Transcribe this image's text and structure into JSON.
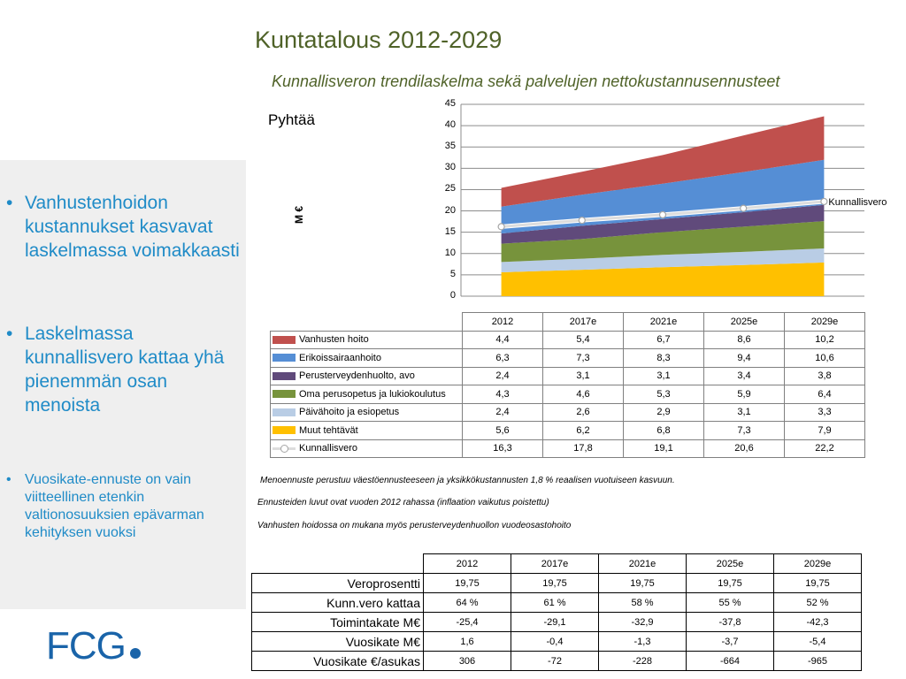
{
  "title": "Kuntatalous 2012-2029",
  "subtitle": "Kunnallisveron trendilaskelma sekä palvelujen nettokustannusennusteet",
  "sidebar": {
    "bullets": [
      "Vanhustenhoidon kustannukset kasvavat laskelmassa voimakkaasti",
      "Laskelmassa kunnallisvero kattaa yhä pienemmän osan menoista",
      "Vuosikate-ennuste on vain viitteellinen etenkin valtionosuuksien epävarman kehityksen vuoksi"
    ],
    "bullet_symbol": "•"
  },
  "logo": "FCG",
  "chart_data": {
    "type": "area",
    "chart_label": "Pyhtää",
    "ylabel": "M €",
    "ylim": [
      0,
      45
    ],
    "yticks": [
      "0",
      "5",
      "10",
      "15",
      "20",
      "25",
      "30",
      "35",
      "40",
      "45"
    ],
    "categories": [
      "2012",
      "2017e",
      "2021e",
      "2025e",
      "2029e"
    ],
    "series": [
      {
        "name": "Vanhusten hoito",
        "values": [
          4.4,
          5.4,
          6.7,
          8.6,
          10.2
        ],
        "labels": [
          "4,4",
          "5,4",
          "6,7",
          "8,6",
          "10,2"
        ],
        "color": "#C0504D"
      },
      {
        "name": "Erikoissairaanhoito",
        "values": [
          6.3,
          7.3,
          8.3,
          9.4,
          10.6
        ],
        "labels": [
          "6,3",
          "7,3",
          "8,3",
          "9,4",
          "10,6"
        ],
        "color": "#558ED5"
      },
      {
        "name": "Perusterveydenhuolto, avo",
        "values": [
          2.4,
          3.1,
          3.1,
          3.4,
          3.8
        ],
        "labels": [
          "2,4",
          "3,1",
          "3,1",
          "3,4",
          "3,8"
        ],
        "color": "#604A7B"
      },
      {
        "name": "Oma perusopetus ja lukiokoulutus",
        "values": [
          4.3,
          4.6,
          5.3,
          5.9,
          6.4
        ],
        "labels": [
          "4,3",
          "4,6",
          "5,3",
          "5,9",
          "6,4"
        ],
        "color": "#77933C"
      },
      {
        "name": "Päivähoito ja esiopetus",
        "values": [
          2.4,
          2.6,
          2.9,
          3.1,
          3.3
        ],
        "labels": [
          "2,4",
          "2,6",
          "2,9",
          "3,1",
          "3,3"
        ],
        "color": "#B9CDE5"
      },
      {
        "name": "Muut tehtävät",
        "values": [
          5.6,
          6.2,
          6.8,
          7.3,
          7.9
        ],
        "labels": [
          "5,6",
          "6,2",
          "6,8",
          "7,3",
          "7,9"
        ],
        "color": "#FFC000"
      },
      {
        "name": "Kunnallisvero",
        "type": "line",
        "values": [
          16.3,
          17.8,
          19.1,
          20.6,
          22.2
        ],
        "labels": [
          "16,3",
          "17,8",
          "19,1",
          "20,6",
          "22,2"
        ],
        "color": "#DDDDDD"
      }
    ],
    "line_label": "Kunnallisvero"
  },
  "notes": [
    "Menoennuste perustuu väestöennusteeseen ja yksikkökustannusten 1,8 % reaalisen vuotuiseen kasvuun.",
    "Ennusteiden luvut ovat vuoden 2012 rahassa (inflaation vaikutus poistettu)",
    "Vanhusten hoidossa on mukana myös perusterveydenhuollon vuodeosastohoito"
  ],
  "summary_table": {
    "columns": [
      "2012",
      "2017e",
      "2021e",
      "2025e",
      "2029e"
    ],
    "rows": [
      {
        "label": "Veroprosentti",
        "values": [
          "19,75",
          "19,75",
          "19,75",
          "19,75",
          "19,75"
        ]
      },
      {
        "label": "Kunn.vero kattaa",
        "values": [
          "64 %",
          "61 %",
          "58 %",
          "55 %",
          "52 %"
        ]
      },
      {
        "label": "Toimintakate M€",
        "values": [
          "-25,4",
          "-29,1",
          "-32,9",
          "-37,8",
          "-42,3"
        ]
      },
      {
        "label": "Vuosikate M€",
        "values": [
          "1,6",
          "-0,4",
          "-1,3",
          "-3,7",
          "-5,4"
        ]
      },
      {
        "label": "Vuosikate €/asukas",
        "values": [
          "306",
          "-72",
          "-228",
          "-664",
          "-965"
        ]
      }
    ]
  }
}
